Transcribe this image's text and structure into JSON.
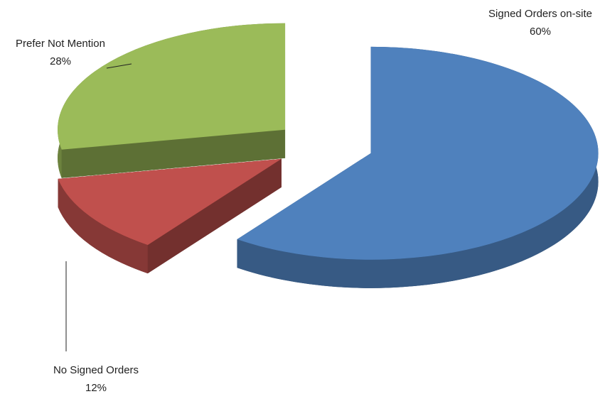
{
  "chart_data": {
    "type": "pie",
    "categories": [
      "Signed Orders on-site",
      "No Signed Orders",
      "Prefer Not Mention"
    ],
    "values": [
      60,
      12,
      28
    ],
    "value_labels": [
      "60%",
      "12%",
      "28%"
    ],
    "colors": [
      "#4f81bd",
      "#c0504d",
      "#9bbb59"
    ]
  }
}
